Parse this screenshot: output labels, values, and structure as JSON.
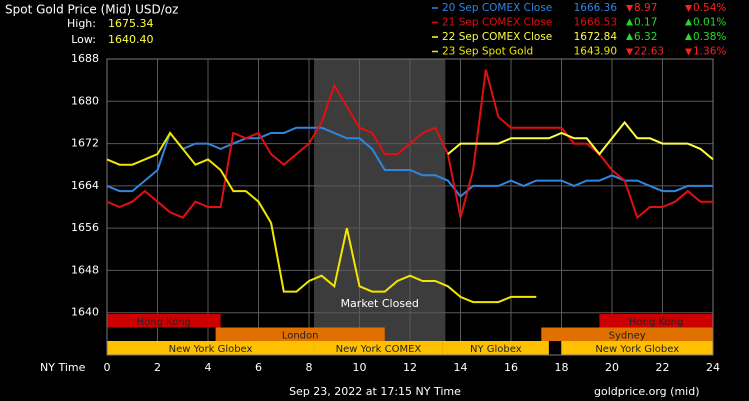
{
  "chart_data": {
    "type": "line",
    "title": "Spot Gold Price (Mid) USD/oz",
    "high_label": "High:",
    "high": "1675.34",
    "low_label": "Low:",
    "low": "1640.40",
    "x_label": "NY Time",
    "footer": "Sep 23, 2022 at 17:15 NY Time",
    "source": "goldprice.org (mid)",
    "xlim": [
      0,
      24
    ],
    "xticks": [
      0,
      2,
      4,
      6,
      8,
      10,
      12,
      14,
      16,
      18,
      20,
      22,
      24
    ],
    "ylim": [
      1632,
      1688
    ],
    "yticks": [
      1640,
      1648,
      1656,
      1664,
      1672,
      1680,
      1688
    ],
    "grid": true,
    "closed_range": {
      "label": "Market Closed",
      "start": 8.2,
      "end": 13.4,
      "color": "#3c3c3c"
    },
    "session_rows": [
      {
        "color": "#cc0000",
        "spans": [
          {
            "label": "Hong Kong",
            "start": 0,
            "end": 4.5
          },
          {
            "label": "Hong Kong",
            "start": 19.5,
            "end": 24
          }
        ]
      },
      {
        "color": "#e07000",
        "spans": [
          {
            "label": "London",
            "start": 4.3,
            "end": 11
          },
          {
            "label": "Sydney",
            "start": 17.2,
            "end": 24
          }
        ]
      },
      {
        "color": "#ffc000",
        "spans": [
          {
            "label": "New York Globex",
            "start": 0,
            "end": 8.2
          },
          {
            "label": "New York COMEX",
            "start": 8.2,
            "end": 13.3
          },
          {
            "label": "NY Globex",
            "start": 13.3,
            "end": 17.5
          },
          {
            "label": "New York Globex",
            "start": 18,
            "end": 24
          }
        ]
      }
    ],
    "x": [
      0,
      0.5,
      1,
      1.5,
      2,
      2.5,
      3,
      3.5,
      4,
      4.5,
      5,
      5.5,
      6,
      6.5,
      7,
      7.5,
      8,
      8.5,
      9,
      9.5,
      10,
      10.5,
      11,
      11.5,
      12,
      12.5,
      13,
      13.5,
      14,
      14.5,
      15,
      15.5,
      16,
      16.5,
      17,
      17.5,
      18,
      18.5,
      19,
      19.5,
      20,
      20.5,
      21,
      21.5,
      22,
      22.5,
      23,
      23.5,
      24
    ],
    "series": [
      {
        "name": "20 Sep COMEX Close",
        "color": "#2f86e0",
        "last": "1666.36",
        "direction": "down",
        "change": "8.97",
        "change_pct": "0.54%",
        "values": [
          1664,
          1663,
          1663,
          1665,
          1667,
          1674,
          1671,
          1672,
          1672,
          1671,
          1672,
          1673,
          1673,
          1674,
          1674,
          1675,
          1675,
          1675,
          1674,
          1673,
          1673,
          1671,
          1667,
          1667,
          1667,
          1666,
          1666,
          1665,
          1662,
          1664,
          1664,
          1664,
          1665,
          1664,
          1665,
          1665,
          1665,
          1664,
          1665,
          1665,
          1666,
          1665,
          1665,
          1664,
          1663,
          1663,
          1664,
          1664,
          1664
        ]
      },
      {
        "name": "21 Sep COMEX Close",
        "color": "#e01010",
        "last": "1666.53",
        "direction": "up",
        "change": "0.17",
        "change_pct": "0.01%",
        "values": [
          1661,
          1660,
          1661,
          1663,
          1661,
          1659,
          1658,
          1661,
          1660,
          1660,
          1674,
          1673,
          1674,
          1670,
          1668,
          1670,
          1672,
          1676,
          1683,
          1679,
          1675,
          1674,
          1670,
          1670,
          1672,
          1674,
          1675,
          1670,
          1658,
          1667,
          1686,
          1677,
          1675,
          1675,
          1675,
          1675,
          1675,
          1672,
          1672,
          1670,
          1667,
          1665,
          1658,
          1660,
          1660,
          1661,
          1663,
          1661,
          1661
        ]
      },
      {
        "name": "22 Sep COMEX Close",
        "color": "#ffff40",
        "last": "1672.84",
        "direction": "up",
        "change": "6.32",
        "change_pct": "0.38%",
        "values": [
          null,
          null,
          null,
          null,
          null,
          null,
          null,
          null,
          null,
          null,
          null,
          null,
          null,
          null,
          null,
          null,
          null,
          null,
          null,
          null,
          null,
          null,
          null,
          null,
          null,
          null,
          null,
          1670,
          1672,
          1672,
          1672,
          1672,
          1673,
          1673,
          1673,
          1673,
          1674,
          1673,
          1673,
          1670,
          1673,
          1676,
          1673,
          1673,
          1672,
          1672,
          1672,
          1671,
          1669
        ]
      },
      {
        "name": "23 Sep Spot Gold",
        "color": "#f2e600",
        "last": "1643.90",
        "direction": "down",
        "change": "22.63",
        "change_pct": "1.36%",
        "values": [
          1669,
          1668,
          1668,
          1669,
          1670,
          1674,
          1671,
          1668,
          1669,
          1667,
          1663,
          1663,
          1661,
          1657,
          1644,
          1644,
          1646,
          1647,
          1645,
          1656,
          1645,
          1644,
          1644,
          1646,
          1647,
          1646,
          1646,
          1645,
          1643,
          1642,
          1642,
          1642,
          1643,
          1643,
          1643,
          null,
          null,
          null,
          null,
          null,
          null,
          null,
          null,
          null,
          null,
          null,
          null,
          null,
          null
        ]
      }
    ]
  }
}
